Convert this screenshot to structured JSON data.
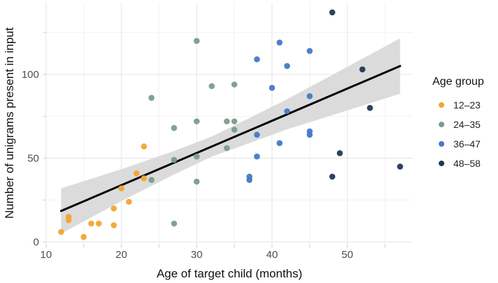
{
  "chart_data": {
    "type": "scatter",
    "title": "",
    "xlabel": "Age of target child (months)",
    "ylabel": "Number of unigrams present in input",
    "axes": {
      "x_major_ticks": [
        10,
        20,
        30,
        40,
        50
      ],
      "x_minor_ticks": [
        15,
        25,
        35,
        45,
        55
      ],
      "y_major_ticks": [
        0,
        50,
        100
      ],
      "y_minor_ticks": [
        25,
        75,
        125
      ],
      "xlim": [
        10,
        58.5
      ],
      "ylim": [
        0,
        142
      ],
      "grid": "on"
    },
    "legend": {
      "title": "Age group",
      "position": "right",
      "entries": [
        {
          "label": "12–23",
          "color": "#F2A532"
        },
        {
          "label": "24–35",
          "color": "#7A9D89"
        },
        {
          "label": "36–47",
          "color": "#4579C6"
        },
        {
          "label": "48–58",
          "color": "#21375A"
        }
      ]
    },
    "series": [
      {
        "name": "12–23",
        "color": "#F2A532",
        "points": [
          [
            12,
            6
          ],
          [
            13,
            15
          ],
          [
            13,
            13
          ],
          [
            15,
            3
          ],
          [
            16,
            11
          ],
          [
            17,
            11
          ],
          [
            19,
            10
          ],
          [
            19,
            20
          ],
          [
            20,
            32
          ],
          [
            21,
            24
          ],
          [
            22,
            41
          ],
          [
            23,
            38
          ],
          [
            23,
            57
          ]
        ]
      },
      {
        "name": "24–35",
        "color": "#7A9D89",
        "points": [
          [
            24,
            37
          ],
          [
            24,
            86
          ],
          [
            27,
            11
          ],
          [
            27,
            49
          ],
          [
            27,
            68
          ],
          [
            30,
            36
          ],
          [
            30,
            51
          ],
          [
            30,
            72
          ],
          [
            30,
            120
          ],
          [
            32,
            93
          ],
          [
            34,
            56
          ],
          [
            34,
            72
          ],
          [
            35,
            67
          ],
          [
            35,
            72
          ],
          [
            35,
            94
          ]
        ]
      },
      {
        "name": "36–47",
        "color": "#4579C6",
        "points": [
          [
            37,
            37
          ],
          [
            37,
            39
          ],
          [
            38,
            51
          ],
          [
            38,
            64
          ],
          [
            38,
            109
          ],
          [
            40,
            92
          ],
          [
            41,
            59
          ],
          [
            41,
            119
          ],
          [
            42,
            78
          ],
          [
            42,
            105
          ],
          [
            45,
            64
          ],
          [
            45,
            66
          ],
          [
            45,
            87
          ],
          [
            45,
            114
          ]
        ]
      },
      {
        "name": "48–58",
        "color": "#21375A",
        "points": [
          [
            48,
            39
          ],
          [
            48,
            137
          ],
          [
            49,
            53
          ],
          [
            52,
            103
          ],
          [
            53,
            80
          ],
          [
            57,
            45
          ]
        ]
      }
    ],
    "regression": {
      "line": {
        "x": [
          12,
          57
        ],
        "y": [
          18.5,
          105
        ]
      },
      "ribbon": {
        "x": [
          12,
          20,
          27,
          32,
          37,
          42,
          48,
          53,
          57
        ],
        "upper": [
          32,
          43.4,
          54.3,
          62.9,
          74,
          85.2,
          99.7,
          111.8,
          121.5
        ],
        "lower": [
          5,
          24.4,
          40.3,
          50.9,
          59,
          67.2,
          75.7,
          82.8,
          88.5
        ]
      },
      "line_color": "#000000",
      "ribbon_color": "#DBDBDB"
    },
    "style": {
      "background": "#FFFFFF",
      "grid_major": "#E4E4E4",
      "grid_minor": "#F2F2F2",
      "tick_color": "#C9C9C9",
      "tick_label_color": "#4D4D4D",
      "axis_title_color": "#111111",
      "point_radius": 4.3
    }
  }
}
